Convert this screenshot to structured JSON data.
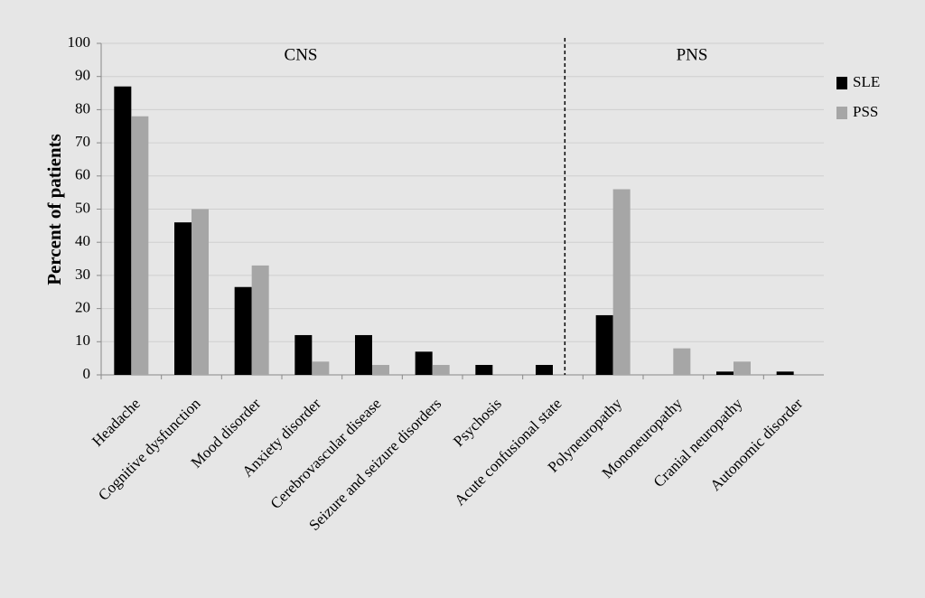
{
  "chart_data": {
    "type": "bar",
    "y_label": "Percent of patients",
    "annotations": [
      "CNS",
      "PNS"
    ],
    "categories": [
      "Headache",
      "Cognitive dysfunction",
      "Mood disorder",
      "Anxiety disorder",
      "Cerebrovascular disease",
      "Seizure and seizure disorders",
      "Psychosis",
      "Acute confusional state",
      "Polyneuropathy",
      "Mononeuropathy",
      "Cranial neuropathy",
      "Autonomic disorder"
    ],
    "series": [
      {
        "name": "SLE",
        "color": "#000000",
        "values": [
          87,
          46,
          26.5,
          12,
          12,
          7,
          3,
          3,
          18,
          0,
          1,
          1
        ]
      },
      {
        "name": "PSS",
        "color": "#a6a6a6",
        "values": [
          78,
          50,
          33,
          4,
          3,
          3,
          0,
          0,
          56,
          8,
          4,
          0
        ]
      }
    ],
    "ylim": [
      0,
      100
    ],
    "yticks": [
      0,
      10,
      20,
      30,
      40,
      50,
      60,
      70,
      80,
      90,
      100
    ],
    "grid": true,
    "legend": "right"
  }
}
